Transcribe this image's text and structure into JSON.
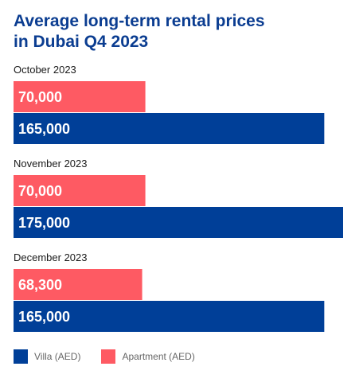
{
  "chart_data": {
    "type": "bar",
    "orientation": "horizontal",
    "title_lines": [
      "Average long-term rental prices",
      "in Dubai Q4 2023"
    ],
    "categories": [
      "October 2023",
      "November 2023",
      "December 2023"
    ],
    "series": [
      {
        "name": "Apartment (AED)",
        "color": "#fe5a63",
        "values": [
          70000,
          70000,
          68300
        ],
        "labels": [
          "70,000",
          "70,000",
          "68,300"
        ]
      },
      {
        "name": "Villa (AED)",
        "color": "#003f98",
        "values": [
          165000,
          175000,
          165000
        ],
        "labels": [
          "165,000",
          "175,000",
          "165,000"
        ]
      }
    ],
    "legend_order": [
      "Villa (AED)",
      "Apartment (AED)"
    ],
    "legend_position": "bottom-left",
    "xlim": [
      0,
      175000
    ],
    "grid": false
  }
}
